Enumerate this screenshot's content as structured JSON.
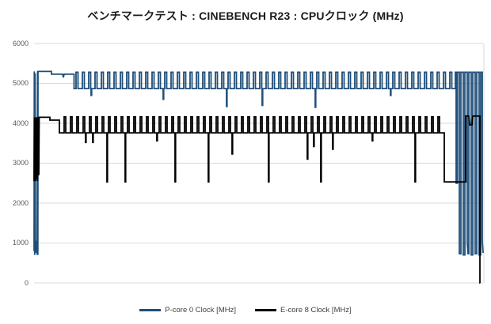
{
  "title": "ベンチマークテスト : CINEBENCH R23 : CPUクロック (MHz)",
  "colors": {
    "background": "#FFFFFF",
    "gridline": "#D9D9D9",
    "axis_label": "#595959",
    "title_text": "#1A1A1A",
    "legend_text": "#404040",
    "pcore_blue": "#1F4E79",
    "ecore_black": "#000000"
  },
  "y_axis": {
    "ticks": [
      0,
      1000,
      2000,
      3000,
      4000,
      5000,
      6000
    ],
    "range": [
      0,
      6000
    ]
  },
  "x_axis": {
    "range": [
      0,
      567
    ],
    "tick_labels": []
  },
  "chart_data": {
    "type": "line",
    "title": "ベンチマークテスト : CINEBENCH R23 : CPUクロック (MHz)",
    "xlabel": "",
    "ylabel": "",
    "ylim": [
      0,
      6000
    ],
    "grid": "horizontal",
    "legend_position": "bottom",
    "series": [
      {
        "name": "P-core 0 Clock [MHz]",
        "color": "#1F4E79",
        "stroke_width": 1.8,
        "phases": [
          {
            "type": "points",
            "points": [
              [
                0,
                800
              ],
              [
                0.3,
                5300
              ],
              [
                0.8,
                700
              ],
              [
                1.3,
                5250
              ],
              [
                1.8,
                750
              ],
              [
                2.4,
                1050
              ],
              [
                3.4,
                1000
              ],
              [
                3.9,
                700
              ],
              [
                4.4,
                5300
              ],
              [
                4.8,
                700
              ],
              [
                5,
                5300
              ],
              [
                22,
                5300
              ],
              [
                22,
                5230
              ],
              [
                36,
                5230
              ],
              [
                37,
                5150
              ],
              [
                38,
                5230
              ],
              [
                50.5,
                5230
              ],
              [
                50.5,
                4870
              ]
            ]
          },
          {
            "type": "osc",
            "t0": 53,
            "t1": 532,
            "period": 8,
            "spike_width": 2.5,
            "base": 4870,
            "peak": 5280,
            "dips": [
              [
                72,
                4700
              ],
              [
                163,
                4600
              ],
              [
                243,
                4420
              ],
              [
                288,
                4450
              ],
              [
                355,
                4400
              ],
              [
                450,
                4700
              ]
            ]
          },
          {
            "type": "points",
            "points": [
              [
                532,
                5280
              ],
              [
                533,
                5280
              ],
              [
                533,
                2500
              ],
              [
                534.5,
                2500
              ],
              [
                534.5,
                5280
              ],
              [
                537,
                5280
              ],
              [
                537,
                730
              ],
              [
                539,
                730
              ],
              [
                539,
                5280
              ],
              [
                542,
                5280
              ],
              [
                542,
                700
              ],
              [
                544,
                700
              ],
              [
                544,
                5280
              ],
              [
                547,
                5280
              ],
              [
                547,
                1000
              ],
              [
                548,
                730
              ],
              [
                549,
                730
              ],
              [
                549,
                5280
              ],
              [
                552,
                5280
              ],
              [
                552,
                700
              ],
              [
                554,
                700
              ],
              [
                554,
                5280
              ],
              [
                557,
                5280
              ],
              [
                557,
                730
              ],
              [
                559,
                730
              ],
              [
                559,
                5280
              ],
              [
                562,
                5280
              ],
              [
                562,
                700
              ],
              [
                564,
                700
              ],
              [
                564,
                5280
              ],
              [
                566,
                5280
              ],
              [
                566,
                1050
              ],
              [
                567,
                750
              ]
            ]
          }
        ]
      },
      {
        "name": "E-core 8 Clock [MHz]",
        "color": "#000000",
        "stroke_width": 1.8,
        "phases": [
          {
            "type": "points",
            "points": [
              [
                0,
                2550
              ],
              [
                0.4,
                4150
              ],
              [
                0.9,
                2570
              ],
              [
                1.4,
                4100
              ],
              [
                1.9,
                2550
              ],
              [
                2.5,
                4150
              ],
              [
                3.2,
                2600
              ],
              [
                3.8,
                4150
              ],
              [
                4.3,
                2550
              ],
              [
                5,
                4150
              ],
              [
                6,
                2700
              ],
              [
                6.5,
                4150
              ],
              [
                20,
                4150
              ],
              [
                20,
                4080
              ],
              [
                32,
                4080
              ],
              [
                32,
                3760
              ],
              [
                34,
                3760
              ]
            ]
          },
          {
            "type": "osc",
            "t0": 38,
            "t1": 518,
            "period": 8,
            "spike_width": 2,
            "base": 3760,
            "peak": 4160,
            "dips": [
              [
                65,
                3520
              ],
              [
                74,
                3520
              ],
              [
                92,
                2530
              ],
              [
                115,
                2530
              ],
              [
                155,
                3560
              ],
              [
                178,
                2530
              ],
              [
                220,
                2530
              ],
              [
                250,
                3230
              ],
              [
                296,
                2530
              ],
              [
                345,
                3100
              ],
              [
                353,
                3420
              ],
              [
                362,
                2530
              ],
              [
                377,
                3350
              ],
              [
                427,
                3560
              ],
              [
                481,
                2530
              ]
            ]
          },
          {
            "type": "points",
            "points": [
              [
                518,
                3760
              ],
              [
                518,
                2530
              ],
              [
                545,
                2530
              ],
              [
                545,
                4180
              ],
              [
                549,
                4180
              ],
              [
                550,
                3960
              ],
              [
                553,
                3960
              ],
              [
                554,
                4180
              ],
              [
                563,
                4180
              ],
              [
                563,
                0
              ],
              [
                563.5,
                0
              ]
            ]
          }
        ]
      }
    ]
  }
}
